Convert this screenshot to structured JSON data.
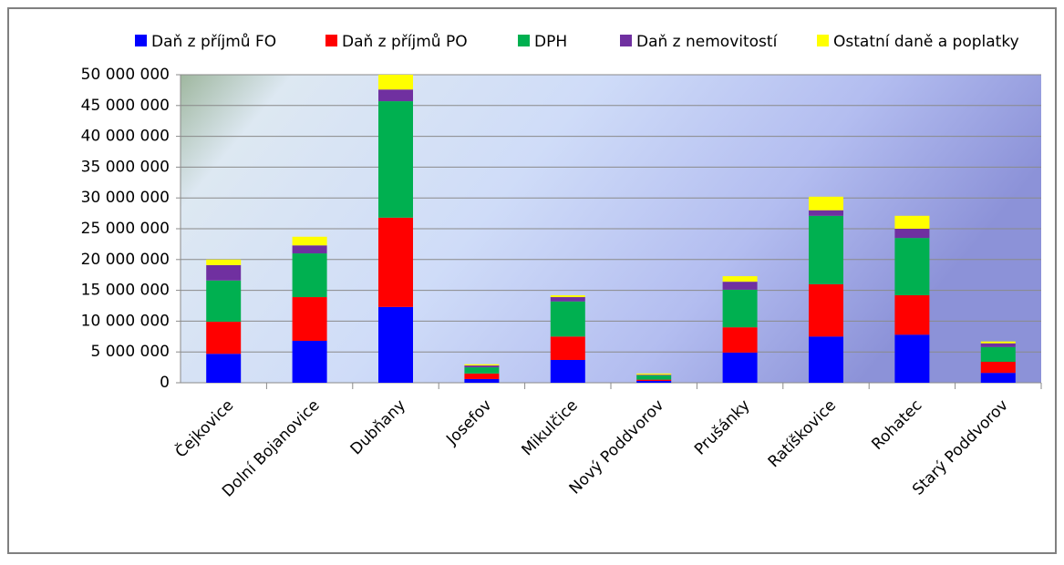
{
  "chart_data": {
    "type": "stacked_bar",
    "categories": [
      "Čejkovice",
      "Dolní Bojanovice",
      "Dubňany",
      "Josefov",
      "Mikulčice",
      "Nový Poddvorov",
      "Prušánky",
      "Ratíškovice",
      "Rohatec",
      "Starý Poddvorov"
    ],
    "series": [
      {
        "name": "Daň z příjmů FO",
        "color": "#0000ff",
        "values": [
          4700000,
          6800000,
          12300000,
          600000,
          3700000,
          300000,
          4900000,
          7500000,
          7800000,
          1600000
        ]
      },
      {
        "name": "Daň z příjmů PO",
        "color": "#ff0000",
        "values": [
          5200000,
          7100000,
          14500000,
          900000,
          3800000,
          200000,
          4100000,
          8500000,
          6400000,
          1800000
        ]
      },
      {
        "name": "DPH",
        "color": "#00b050",
        "values": [
          6700000,
          7100000,
          18900000,
          1000000,
          5700000,
          700000,
          6100000,
          11100000,
          9300000,
          2400000
        ]
      },
      {
        "name": "Daň z nemovitostí",
        "color": "#7030a0",
        "values": [
          2500000,
          1300000,
          1900000,
          300000,
          700000,
          100000,
          1300000,
          900000,
          1500000,
          600000
        ]
      },
      {
        "name": "Ostatní daně a poplatky",
        "color": "#ffff00",
        "values": [
          900000,
          1400000,
          2400000,
          200000,
          300000,
          200000,
          900000,
          2200000,
          2100000,
          300000
        ]
      }
    ],
    "ylim": [
      0,
      50000000
    ],
    "yticks": [
      0,
      {
        "value": 5000000,
        "label": "5 000 000"
      },
      {
        "value": 10000000,
        "label": "10 000 000"
      },
      {
        "value": 15000000,
        "label": "15 000 000"
      },
      {
        "value": 20000000,
        "label": "20 000 000"
      },
      {
        "value": 25000000,
        "label": "25 000 000"
      },
      {
        "value": 30000000,
        "label": "30 000 000"
      },
      {
        "value": 35000000,
        "label": "35 000 000"
      },
      {
        "value": 40000000,
        "label": "40 000 000"
      },
      {
        "value": 45000000,
        "label": "45 000 000"
      },
      {
        "value": 50000000,
        "label": "50 000 000"
      }
    ],
    "grid": true,
    "legend": "top"
  }
}
